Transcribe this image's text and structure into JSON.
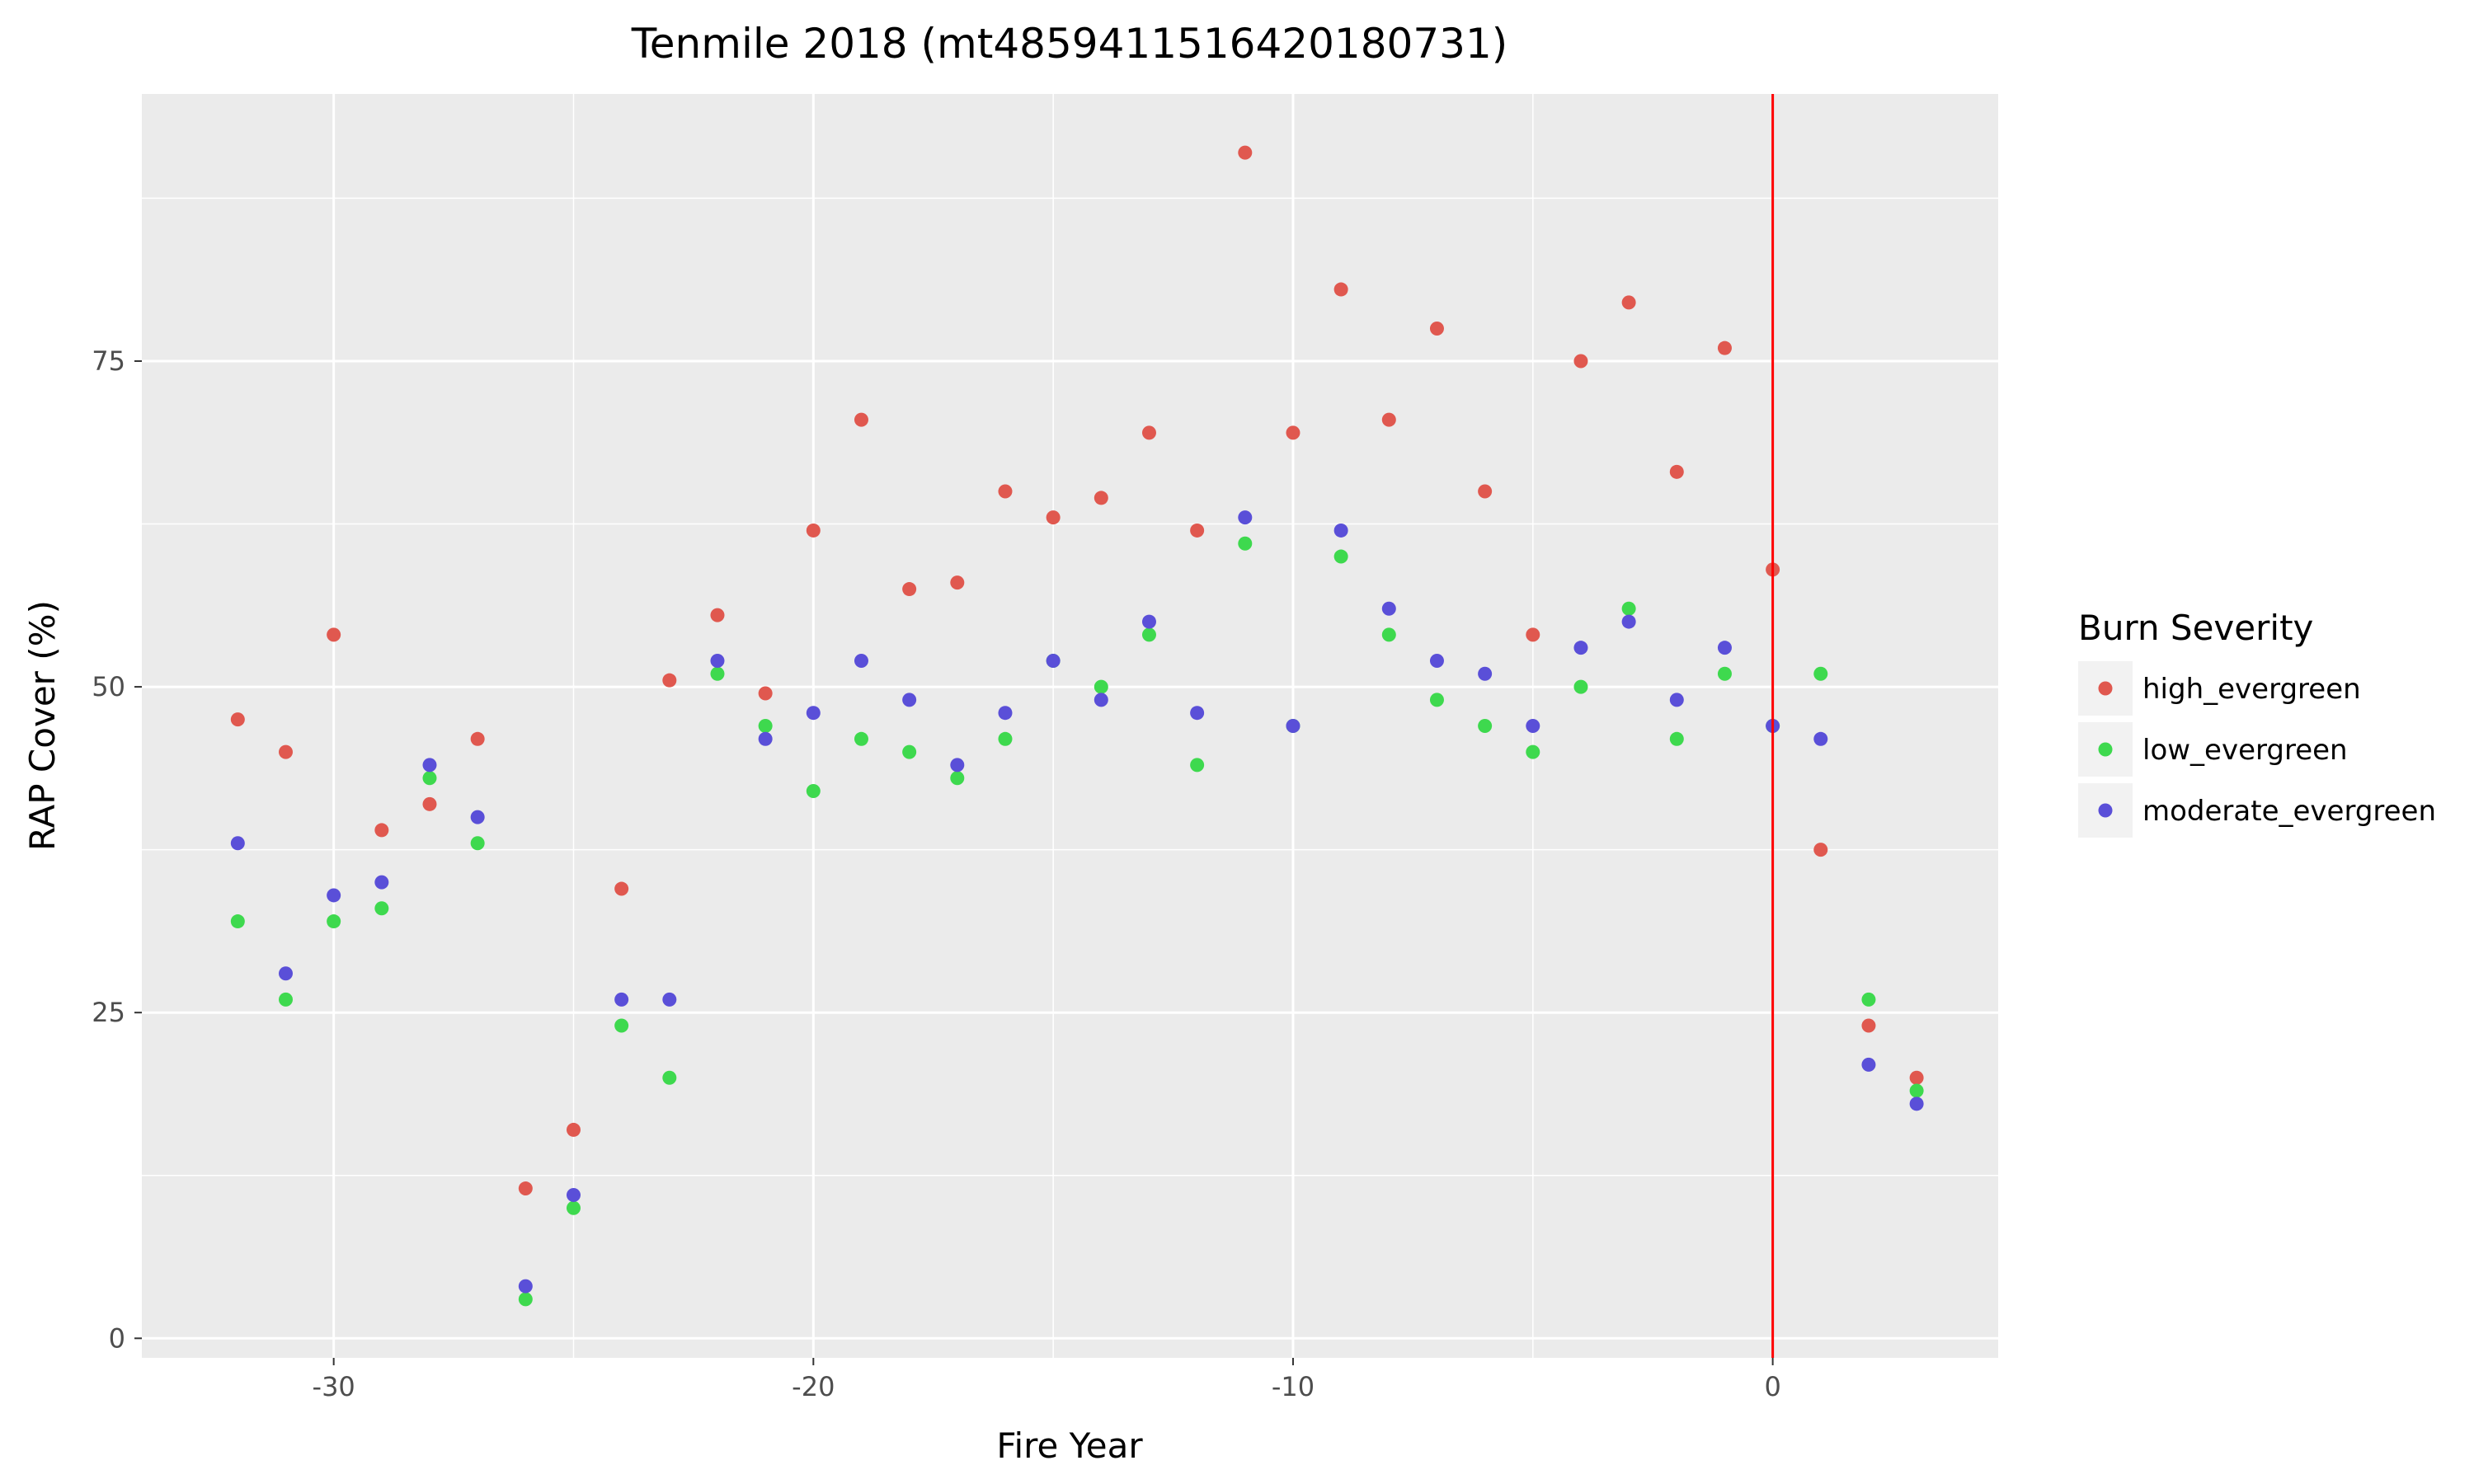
{
  "chart_data": {
    "type": "scatter",
    "title": "Tenmile 2018 (mt4859411516420180731)",
    "xlabel": "Fire Year",
    "ylabel": "RAP Cover (%)",
    "xlim": [
      -34,
      4.7
    ],
    "ylim": [
      -1.5,
      95.5
    ],
    "xticks": [
      -30,
      -20,
      -10,
      0
    ],
    "yticks": [
      0,
      25,
      50,
      75
    ],
    "grid": true,
    "vline": {
      "x": 0,
      "color": "#ff0000"
    },
    "legend": {
      "title": "Burn Severity",
      "position": "right"
    },
    "series": [
      {
        "name": "high_evergreen",
        "color": "#e0584f",
        "x": [
          -32,
          -31,
          -30,
          -29,
          -28,
          -27,
          -26,
          -25,
          -24,
          -23,
          -22,
          -21,
          -20,
          -19,
          -18,
          -17,
          -16,
          -15,
          -14,
          -13,
          -12,
          -11,
          -10,
          -9,
          -8,
          -7,
          -6,
          -5,
          -4,
          -3,
          -2,
          -1,
          0,
          1,
          2,
          3
        ],
        "y": [
          47.5,
          45,
          54,
          39,
          41,
          46,
          11.5,
          16,
          34.5,
          50.5,
          55.5,
          49.5,
          62,
          70.5,
          57.5,
          58,
          65,
          63,
          64.5,
          69.5,
          62,
          91,
          69.5,
          80.5,
          70.5,
          77.5,
          65,
          54,
          75,
          79.5,
          66.5,
          76,
          59,
          37.5,
          24,
          20
        ]
      },
      {
        "name": "low_evergreen",
        "color": "#3ed94e",
        "x": [
          -32,
          -31,
          -30,
          -29,
          -28,
          -27,
          -26,
          -25,
          -24,
          -23,
          -22,
          -21,
          -20,
          -19,
          -18,
          -17,
          -16,
          -15,
          -14,
          -13,
          -12,
          -11,
          -10,
          -9,
          -8,
          -7,
          -6,
          -5,
          -4,
          -3,
          -2,
          -1,
          0,
          1,
          2,
          3
        ],
        "y": [
          32,
          26,
          32,
          33,
          43,
          38,
          3,
          10,
          24,
          20,
          51,
          47,
          42,
          46,
          45,
          43,
          46,
          52,
          50,
          54,
          44,
          61,
          47,
          60,
          54,
          49,
          47,
          45,
          50,
          56,
          46,
          51,
          47,
          51,
          26,
          19
        ]
      },
      {
        "name": "moderate_evergreen",
        "color": "#5a4fd8",
        "x": [
          -32,
          -31,
          -30,
          -29,
          -28,
          -27,
          -26,
          -25,
          -24,
          -23,
          -22,
          -21,
          -20,
          -19,
          -18,
          -17,
          -16,
          -15,
          -14,
          -13,
          -12,
          -11,
          -10,
          -9,
          -8,
          -7,
          -6,
          -5,
          -4,
          -3,
          -2,
          -1,
          0,
          1,
          2,
          3
        ],
        "y": [
          38,
          28,
          34,
          35,
          44,
          40,
          4,
          11,
          26,
          26,
          52,
          46,
          48,
          52,
          49,
          44,
          48,
          52,
          49,
          55,
          48,
          63,
          47,
          62,
          56,
          52,
          51,
          47,
          53,
          55,
          49,
          53,
          47,
          46,
          21,
          18
        ]
      }
    ]
  },
  "colors": {
    "panel_background": "#ebebeb",
    "grid": "#ffffff",
    "axis_text": "#4d4d4d"
  }
}
